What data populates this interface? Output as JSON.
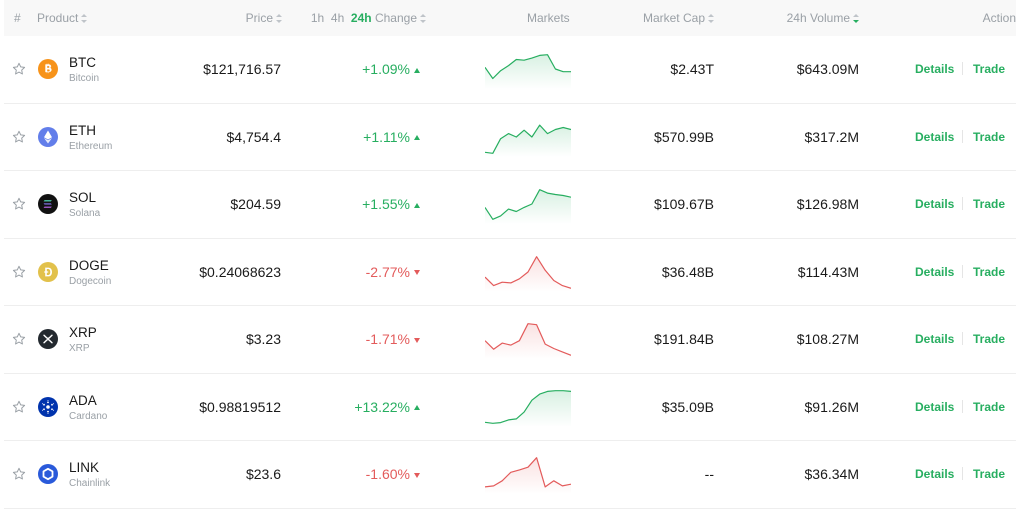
{
  "header": {
    "hash": "#",
    "product": "Product",
    "price": "Price",
    "tf_1h": "1h",
    "tf_4h": "4h",
    "tf_24h": "24h",
    "change": "Change",
    "markets": "Markets",
    "market_cap": "Market Cap",
    "volume": "24h Volume",
    "action": "Action"
  },
  "colors": {
    "up": "#27ae60",
    "down": "#e35b5b"
  },
  "action_labels": {
    "details": "Details",
    "trade": "Trade"
  },
  "coins": [
    {
      "symbol": "BTC",
      "name": "Bitcoin",
      "price": "$121,716.57",
      "change": "+1.09%",
      "direction": "up",
      "market_cap": "$2.43T",
      "volume": "$643.09M",
      "icon": "bitcoin-icon",
      "icon_color": "#f7931a",
      "spark": [
        0.55,
        0.22,
        0.45,
        0.6,
        0.78,
        0.76,
        0.82,
        0.9,
        0.92,
        0.5,
        0.42,
        0.42
      ]
    },
    {
      "symbol": "ETH",
      "name": "Ethereum",
      "price": "$4,754.4",
      "change": "+1.11%",
      "direction": "up",
      "market_cap": "$570.99B",
      "volume": "$317.2M",
      "icon": "ethereum-icon",
      "icon_color": "#627eea",
      "spark": [
        0.05,
        0.02,
        0.45,
        0.6,
        0.5,
        0.7,
        0.5,
        0.85,
        0.6,
        0.72,
        0.78,
        0.72
      ]
    },
    {
      "symbol": "SOL",
      "name": "Solana",
      "price": "$204.59",
      "change": "+1.55%",
      "direction": "up",
      "market_cap": "$109.67B",
      "volume": "$126.98M",
      "icon": "solana-icon",
      "icon_color": "#111111",
      "spark": [
        0.4,
        0.05,
        0.15,
        0.35,
        0.28,
        0.4,
        0.5,
        0.92,
        0.82,
        0.78,
        0.75,
        0.7
      ]
    },
    {
      "symbol": "DOGE",
      "name": "Dogecoin",
      "price": "$0.24068623",
      "change": "-2.77%",
      "direction": "down",
      "market_cap": "$36.48B",
      "volume": "$114.43M",
      "icon": "dogecoin-icon",
      "icon_color": "#e2c14b",
      "spark": [
        0.35,
        0.1,
        0.2,
        0.18,
        0.3,
        0.5,
        0.95,
        0.55,
        0.25,
        0.1,
        0.02
      ]
    },
    {
      "symbol": "XRP",
      "name": "XRP",
      "price": "$3.23",
      "change": "-1.71%",
      "direction": "down",
      "market_cap": "$191.84B",
      "volume": "$108.27M",
      "icon": "xrp-icon",
      "icon_color": "#23292f",
      "spark": [
        0.45,
        0.2,
        0.38,
        0.32,
        0.45,
        0.95,
        0.92,
        0.35,
        0.22,
        0.12,
        0.02
      ]
    },
    {
      "symbol": "ADA",
      "name": "Cardano",
      "price": "$0.98819512",
      "change": "+13.22%",
      "direction": "up",
      "market_cap": "$35.09B",
      "volume": "$91.26M",
      "icon": "cardano-icon",
      "icon_color": "#0033ad",
      "spark": [
        0.05,
        0.02,
        0.04,
        0.12,
        0.15,
        0.35,
        0.7,
        0.88,
        0.96,
        0.98,
        0.98,
        0.96
      ]
    },
    {
      "symbol": "LINK",
      "name": "Chainlink",
      "price": "$23.6",
      "change": "-1.60%",
      "direction": "down",
      "market_cap": "--",
      "volume": "$36.34M",
      "icon": "chainlink-icon",
      "icon_color": "#2a5ada",
      "spark": [
        0.12,
        0.15,
        0.3,
        0.55,
        0.62,
        0.7,
        0.98,
        0.12,
        0.3,
        0.15,
        0.2
      ]
    }
  ]
}
